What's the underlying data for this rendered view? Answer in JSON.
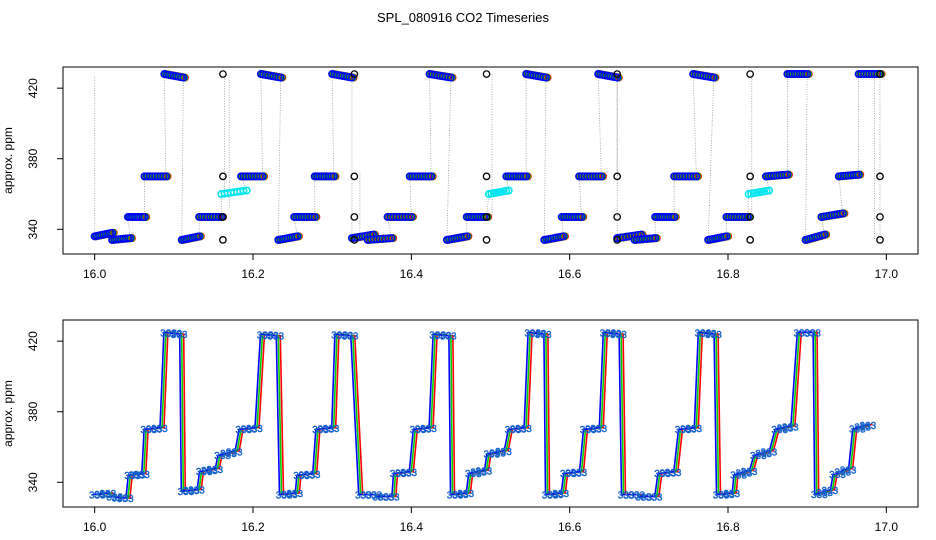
{
  "figure": {
    "title": "SPL_080916  CO2 Timeseries"
  },
  "chart_data": [
    {
      "type": "scatter",
      "title": "SPL_080916  CO2 Timeseries",
      "xlabel": "",
      "ylabel": "approx. ppm",
      "xlim": [
        15.96,
        17.04
      ],
      "ylim": [
        326,
        432
      ],
      "xticks": [
        "16.0",
        "16.2",
        "16.4",
        "16.6",
        "16.8",
        "17.0"
      ],
      "yticks": [
        "340",
        "380",
        "420"
      ],
      "grid": false,
      "marker": "open circle",
      "series_colors": [
        "#ff0000",
        "#00cc00",
        "#0000ff"
      ],
      "highlight_color": "#00e5ee",
      "black_markers_color": "#000000",
      "connector_color": "#9a9a9a",
      "segments": [
        {
          "x": [
            16.0,
            16.022
          ],
          "y": [
            336,
            338
          ]
        },
        {
          "x": [
            16.022,
            16.045
          ],
          "y": [
            334,
            335
          ]
        },
        {
          "x": [
            16.042,
            16.063
          ],
          "y": [
            347,
            347
          ]
        },
        {
          "x": [
            16.063,
            16.09
          ],
          "y": [
            370,
            370
          ]
        },
        {
          "x": [
            16.088,
            16.112
          ],
          "y": [
            428,
            426
          ]
        },
        {
          "x": [
            16.11,
            16.132
          ],
          "y": [
            334,
            336
          ]
        },
        {
          "x": [
            16.132,
            16.16
          ],
          "y": [
            347,
            347
          ]
        },
        {
          "x": [
            16.16,
            16.192
          ],
          "y": [
            360,
            362
          ],
          "highlight": true
        },
        {
          "x": [
            16.185,
            16.212
          ],
          "y": [
            370,
            370
          ]
        },
        {
          "x": [
            16.21,
            16.235
          ],
          "y": [
            428,
            426
          ]
        },
        {
          "x": [
            16.232,
            16.256
          ],
          "y": [
            334,
            336
          ]
        },
        {
          "x": [
            16.252,
            16.278
          ],
          "y": [
            347,
            347
          ]
        },
        {
          "x": [
            16.278,
            16.302
          ],
          "y": [
            370,
            370
          ]
        },
        {
          "x": [
            16.3,
            16.325
          ],
          "y": [
            428,
            426
          ]
        },
        {
          "x": [
            16.325,
            16.352
          ],
          "y": [
            335,
            337
          ]
        },
        {
          "x": [
            16.345,
            16.375
          ],
          "y": [
            334,
            335
          ]
        },
        {
          "x": [
            16.37,
            16.4
          ],
          "y": [
            347,
            347
          ]
        },
        {
          "x": [
            16.398,
            16.425
          ],
          "y": [
            370,
            370
          ]
        },
        {
          "x": [
            16.423,
            16.45
          ],
          "y": [
            428,
            426
          ]
        },
        {
          "x": [
            16.445,
            16.47
          ],
          "y": [
            334,
            336
          ]
        },
        {
          "x": [
            16.47,
            16.495
          ],
          "y": [
            347,
            347
          ]
        },
        {
          "x": [
            16.498,
            16.523
          ],
          "y": [
            360,
            362
          ],
          "highlight": true
        },
        {
          "x": [
            16.52,
            16.545
          ],
          "y": [
            370,
            370
          ]
        },
        {
          "x": [
            16.545,
            16.57
          ],
          "y": [
            428,
            426
          ]
        },
        {
          "x": [
            16.568,
            16.592
          ],
          "y": [
            334,
            336
          ]
        },
        {
          "x": [
            16.59,
            16.615
          ],
          "y": [
            347,
            347
          ]
        },
        {
          "x": [
            16.612,
            16.64
          ],
          "y": [
            370,
            370
          ]
        },
        {
          "x": [
            16.636,
            16.66
          ],
          "y": [
            428,
            426
          ]
        },
        {
          "x": [
            16.66,
            16.69
          ],
          "y": [
            335,
            337
          ]
        },
        {
          "x": [
            16.682,
            16.708
          ],
          "y": [
            334,
            335
          ]
        },
        {
          "x": [
            16.708,
            16.732
          ],
          "y": [
            347,
            347
          ]
        },
        {
          "x": [
            16.732,
            16.76
          ],
          "y": [
            370,
            370
          ]
        },
        {
          "x": [
            16.756,
            16.782
          ],
          "y": [
            428,
            426
          ]
        },
        {
          "x": [
            16.775,
            16.798
          ],
          "y": [
            334,
            336
          ]
        },
        {
          "x": [
            16.798,
            16.825
          ],
          "y": [
            347,
            347
          ]
        },
        {
          "x": [
            16.826,
            16.852
          ],
          "y": [
            360,
            362
          ],
          "highlight": true
        },
        {
          "x": [
            16.848,
            16.875
          ],
          "y": [
            370,
            371
          ]
        },
        {
          "x": [
            16.875,
            16.9
          ],
          "y": [
            428,
            428
          ]
        },
        {
          "x": [
            16.898,
            16.922
          ],
          "y": [
            334,
            337
          ]
        },
        {
          "x": [
            16.918,
            16.945
          ],
          "y": [
            347,
            349
          ]
        },
        {
          "x": [
            16.94,
            16.965
          ],
          "y": [
            370,
            371
          ]
        },
        {
          "x": [
            16.965,
            16.992
          ],
          "y": [
            428,
            428
          ]
        }
      ],
      "connectors": [
        [
          16.0,
          336,
          16.0,
          427
        ],
        [
          16.022,
          338,
          16.022,
          334
        ],
        [
          16.045,
          335,
          16.042,
          347
        ],
        [
          16.063,
          347,
          16.063,
          370
        ],
        [
          16.09,
          370,
          16.088,
          428
        ],
        [
          16.112,
          426,
          16.11,
          334
        ],
        [
          16.132,
          336,
          16.132,
          347
        ],
        [
          16.16,
          347,
          16.16,
          360
        ],
        [
          16.192,
          362,
          16.185,
          370
        ],
        [
          16.212,
          370,
          16.21,
          428
        ],
        [
          16.235,
          426,
          16.232,
          334
        ],
        [
          16.256,
          336,
          16.252,
          347
        ],
        [
          16.278,
          347,
          16.278,
          370
        ],
        [
          16.302,
          370,
          16.3,
          428
        ],
        [
          16.325,
          426,
          16.325,
          335
        ],
        [
          16.352,
          337,
          16.345,
          334
        ],
        [
          16.375,
          335,
          16.37,
          347
        ],
        [
          16.4,
          347,
          16.398,
          370
        ],
        [
          16.425,
          370,
          16.423,
          428
        ],
        [
          16.45,
          426,
          16.445,
          334
        ],
        [
          16.47,
          336,
          16.47,
          347
        ],
        [
          16.495,
          347,
          16.498,
          360
        ],
        [
          16.523,
          362,
          16.52,
          370
        ],
        [
          16.545,
          370,
          16.545,
          428
        ],
        [
          16.57,
          426,
          16.568,
          334
        ],
        [
          16.592,
          336,
          16.59,
          347
        ],
        [
          16.615,
          347,
          16.612,
          370
        ],
        [
          16.64,
          370,
          16.636,
          428
        ],
        [
          16.66,
          426,
          16.66,
          335
        ],
        [
          16.69,
          337,
          16.682,
          334
        ],
        [
          16.708,
          335,
          16.708,
          347
        ],
        [
          16.732,
          347,
          16.732,
          370
        ],
        [
          16.76,
          370,
          16.756,
          428
        ],
        [
          16.782,
          426,
          16.775,
          334
        ],
        [
          16.798,
          336,
          16.798,
          347
        ],
        [
          16.825,
          347,
          16.826,
          360
        ],
        [
          16.852,
          362,
          16.848,
          370
        ],
        [
          16.875,
          371,
          16.875,
          428
        ],
        [
          16.9,
          428,
          16.898,
          334
        ],
        [
          16.922,
          337,
          16.918,
          347
        ],
        [
          16.945,
          349,
          16.94,
          370
        ],
        [
          16.965,
          371,
          16.965,
          428
        ],
        [
          16.992,
          428,
          16.992,
          334
        ],
        [
          16.164,
          427,
          16.164,
          360
        ],
        [
          16.17,
          352,
          16.17,
          427
        ],
        [
          16.335,
          372,
          16.335,
          334
        ],
        [
          16.502,
          428,
          16.502,
          347
        ],
        [
          16.66,
          428,
          16.66,
          370
        ],
        [
          16.83,
          427,
          16.83,
          348
        ],
        [
          16.985,
          430,
          16.985,
          334
        ]
      ],
      "black_markers": [
        [
          16.162,
          428
        ],
        [
          16.162,
          370
        ],
        [
          16.162,
          347
        ],
        [
          16.162,
          334
        ],
        [
          16.328,
          428
        ],
        [
          16.328,
          370
        ],
        [
          16.328,
          347
        ],
        [
          16.328,
          334
        ],
        [
          16.495,
          428
        ],
        [
          16.495,
          370
        ],
        [
          16.495,
          347
        ],
        [
          16.495,
          334
        ],
        [
          16.66,
          428
        ],
        [
          16.66,
          370
        ],
        [
          16.66,
          347
        ],
        [
          16.66,
          334
        ],
        [
          16.828,
          428
        ],
        [
          16.828,
          370
        ],
        [
          16.828,
          347
        ],
        [
          16.828,
          334
        ],
        [
          16.992,
          428
        ],
        [
          16.992,
          370
        ],
        [
          16.992,
          347
        ],
        [
          16.992,
          334
        ]
      ]
    },
    {
      "type": "line",
      "xlabel": "",
      "ylabel": "approx. ppm",
      "xlim": [
        15.96,
        17.04
      ],
      "ylim": [
        326,
        432
      ],
      "xticks": [
        "16.0",
        "16.2",
        "16.4",
        "16.6",
        "16.8",
        "17.0"
      ],
      "yticks": [
        "340",
        "380",
        "420"
      ],
      "grid": false,
      "series_colors": [
        "#ff0000",
        "#00cc00",
        "#0000ff"
      ],
      "point_labels": "333",
      "label_color": "#00a8c0",
      "x": [
        16.0,
        16.02,
        16.022,
        16.042,
        16.045,
        16.062,
        16.065,
        16.085,
        16.09,
        16.11,
        16.112,
        16.132,
        16.135,
        16.155,
        16.158,
        16.18,
        16.185,
        16.205,
        16.212,
        16.232,
        16.236,
        16.256,
        16.258,
        16.278,
        16.282,
        16.302,
        16.306,
        16.326,
        16.336,
        16.356,
        16.358,
        16.378,
        16.38,
        16.4,
        16.405,
        16.425,
        16.43,
        16.45,
        16.452,
        16.472,
        16.475,
        16.495,
        16.498,
        16.52,
        16.525,
        16.545,
        16.55,
        16.57,
        16.572,
        16.592,
        16.595,
        16.615,
        16.62,
        16.64,
        16.645,
        16.665,
        16.668,
        16.688,
        16.69,
        16.71,
        16.714,
        16.734,
        16.74,
        16.76,
        16.765,
        16.785,
        16.788,
        16.808,
        16.81,
        16.83,
        16.835,
        16.855,
        16.862,
        16.882,
        16.89,
        16.91,
        16.912,
        16.932,
        16.935,
        16.955,
        16.96,
        16.98
      ],
      "series": [
        {
          "y": [
            333,
            334,
            332,
            331,
            344,
            345,
            370,
            371,
            425,
            424,
            335,
            336,
            346,
            348,
            355,
            358,
            370,
            371,
            424,
            423,
            333,
            334,
            344,
            345,
            370,
            371,
            424,
            423,
            333,
            333,
            332,
            332,
            345,
            346,
            370,
            371,
            424,
            423,
            333,
            334,
            345,
            347,
            356,
            358,
            370,
            371,
            425,
            424,
            333,
            334,
            345,
            346,
            370,
            371,
            425,
            424,
            333,
            333,
            332,
            332,
            345,
            346,
            370,
            371,
            425,
            424,
            333,
            334,
            344,
            347,
            355,
            358,
            370,
            372,
            425,
            425,
            333,
            336,
            344,
            348,
            370,
            373
          ]
        }
      ]
    }
  ]
}
